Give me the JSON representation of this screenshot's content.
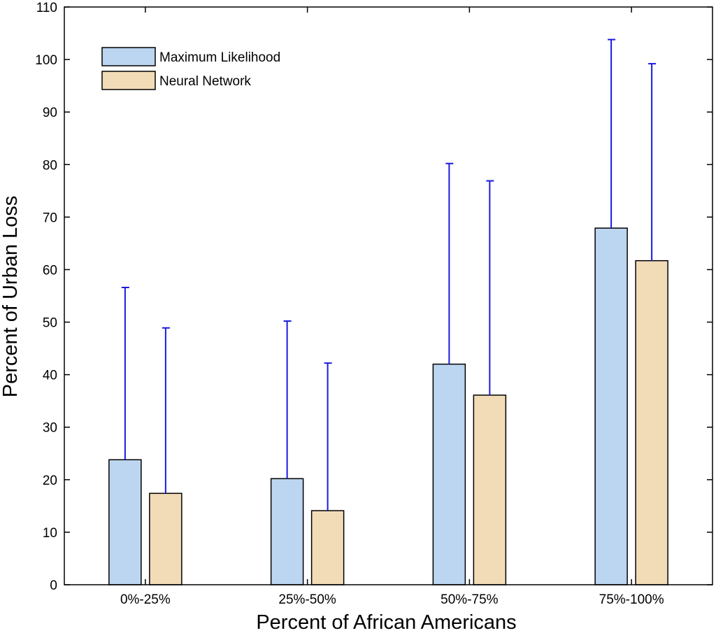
{
  "chart_data": {
    "type": "bar",
    "title": "",
    "xlabel": "Percent of African Americans",
    "ylabel": "Percent of Urban Loss",
    "categories": [
      "0%-25%",
      "25%-50%",
      "50%-75%",
      "75%-100%"
    ],
    "ylim": [
      0,
      110
    ],
    "yticks": [
      0,
      10,
      20,
      30,
      40,
      50,
      60,
      70,
      80,
      90,
      100,
      110
    ],
    "series": [
      {
        "name": "Maximum Likelihood",
        "color": "#bcd5f0",
        "values": [
          23.8,
          20.2,
          42.0,
          67.9
        ],
        "error_upper": [
          56.6,
          50.2,
          80.2,
          103.8
        ]
      },
      {
        "name": "Neural Network",
        "color": "#f2dcb8",
        "values": [
          17.4,
          14.1,
          36.1,
          61.7
        ],
        "error_upper": [
          48.9,
          42.2,
          76.9,
          99.2
        ]
      }
    ],
    "error_bar_color": "#1a1adf",
    "legend_position": "top-left",
    "grid": false
  }
}
